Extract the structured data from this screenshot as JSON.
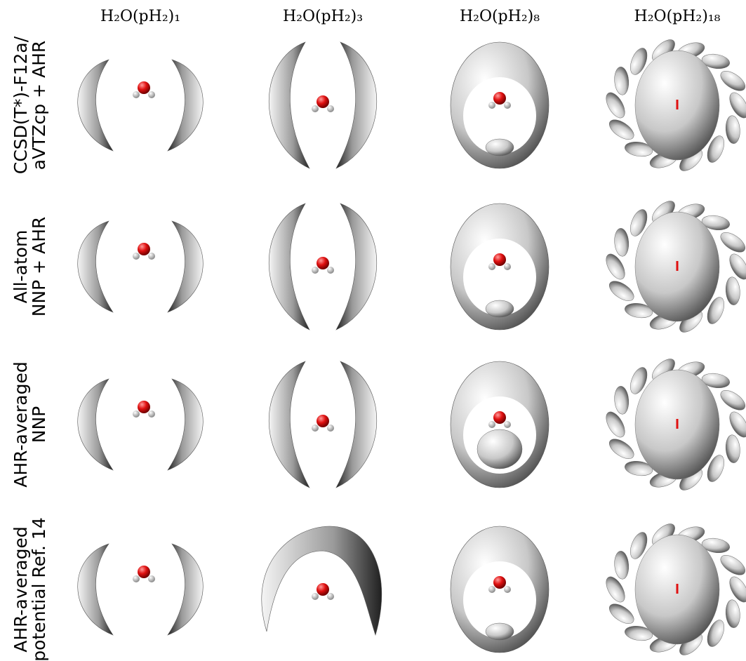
{
  "columns": [
    "H₂O(pH₂)₁",
    "H₂O(pH₂)₃",
    "H₂O(pH₂)₈",
    "H₂O(pH₂)₁₈"
  ],
  "rows": [
    {
      "label": [
        "CCSD(T*)-F12a/",
        "aVTZcp + AHR"
      ]
    },
    {
      "label": [
        "All-atom",
        "NNP + AHR"
      ]
    },
    {
      "label": [
        "AHR-averaged",
        "NNP"
      ]
    },
    {
      "label": [
        "AHR-averaged",
        "potential Ref. 14"
      ]
    }
  ]
}
